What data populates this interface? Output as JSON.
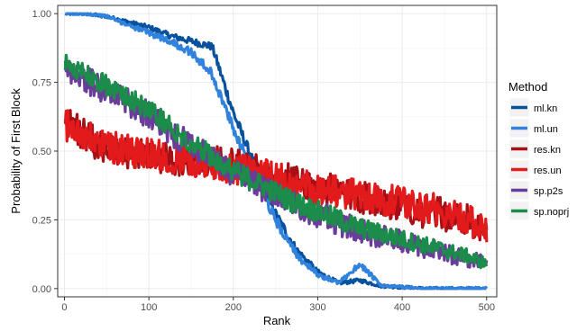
{
  "chart_data": {
    "type": "line",
    "xlabel": "Rank",
    "ylabel": "Probability of First Block",
    "xlim": [
      -8,
      512
    ],
    "ylim": [
      -0.03,
      1.03
    ],
    "x_ticks": [
      0,
      100,
      200,
      300,
      400,
      500
    ],
    "x_tick_labels": [
      "0",
      "100",
      "200",
      "300",
      "400",
      "500"
    ],
    "y_ticks": [
      0,
      0.25,
      0.5,
      0.75,
      1.0
    ],
    "y_tick_labels": [
      "0.00",
      "0.25",
      "0.50",
      "0.75",
      "1.00"
    ],
    "grid": true,
    "legend": {
      "title": "Method",
      "placement": "right"
    },
    "x": [
      1,
      25,
      50,
      75,
      100,
      125,
      150,
      175,
      200,
      225,
      250,
      275,
      300,
      325,
      350,
      375,
      400,
      425,
      450,
      475,
      500
    ],
    "series": [
      {
        "name": "ml.kn",
        "color": "#08519c",
        "noise": 0.02,
        "values": [
          1.0,
          1.0,
          0.99,
          0.97,
          0.95,
          0.92,
          0.9,
          0.88,
          0.64,
          0.45,
          0.27,
          0.14,
          0.06,
          0.02,
          0.03,
          0.01,
          0.005,
          0.0,
          0.0,
          0.0,
          0.0
        ]
      },
      {
        "name": "ml.un",
        "color": "#3182dd",
        "noise": 0.02,
        "values": [
          1.0,
          1.0,
          0.99,
          0.96,
          0.93,
          0.9,
          0.86,
          0.78,
          0.58,
          0.42,
          0.25,
          0.12,
          0.05,
          0.02,
          0.09,
          0.01,
          0.005,
          0.0,
          0.0,
          0.0,
          0.0
        ]
      },
      {
        "name": "res.kn",
        "color": "#a50f15",
        "noise": 0.06,
        "values": [
          0.63,
          0.55,
          0.51,
          0.49,
          0.48,
          0.47,
          0.47,
          0.46,
          0.45,
          0.43,
          0.41,
          0.39,
          0.37,
          0.35,
          0.33,
          0.32,
          0.3,
          0.28,
          0.27,
          0.25,
          0.2
        ]
      },
      {
        "name": "res.un",
        "color": "#e31a1c",
        "noise": 0.06,
        "values": [
          0.6,
          0.55,
          0.52,
          0.5,
          0.49,
          0.48,
          0.47,
          0.45,
          0.44,
          0.42,
          0.4,
          0.38,
          0.36,
          0.35,
          0.34,
          0.33,
          0.31,
          0.3,
          0.28,
          0.26,
          0.2
        ]
      },
      {
        "name": "sp.p2s",
        "color": "#6a3d9a",
        "noise": 0.05,
        "values": [
          0.8,
          0.76,
          0.72,
          0.68,
          0.63,
          0.57,
          0.52,
          0.47,
          0.42,
          0.38,
          0.34,
          0.3,
          0.27,
          0.24,
          0.21,
          0.19,
          0.17,
          0.15,
          0.13,
          0.11,
          0.09
        ]
      },
      {
        "name": "sp.noprj",
        "color": "#1b8c4a",
        "noise": 0.04,
        "values": [
          0.82,
          0.78,
          0.74,
          0.7,
          0.65,
          0.59,
          0.53,
          0.48,
          0.43,
          0.39,
          0.35,
          0.31,
          0.28,
          0.25,
          0.22,
          0.2,
          0.18,
          0.16,
          0.14,
          0.12,
          0.09
        ]
      }
    ]
  }
}
